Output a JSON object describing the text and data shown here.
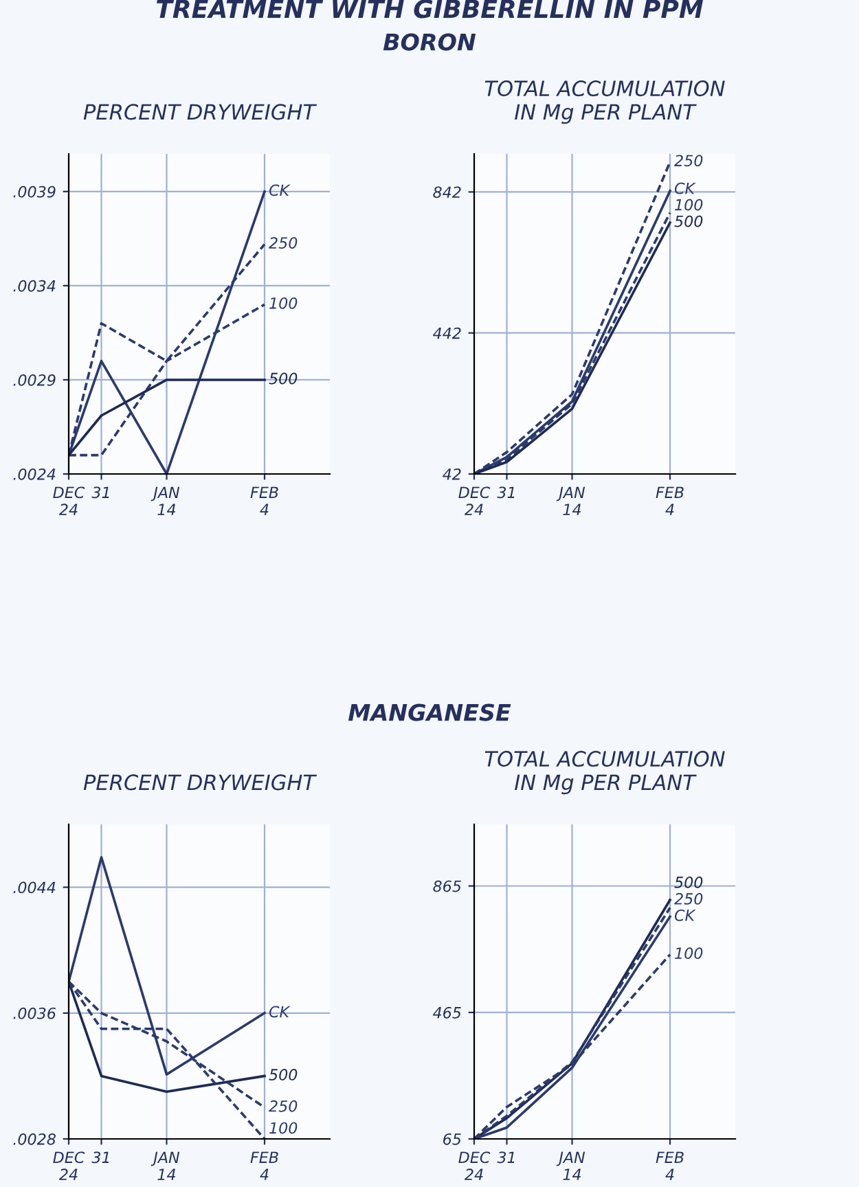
{
  "chart_data": [
    {
      "type": "line",
      "title": "PERCENT DRYWEIGHT",
      "annotations": [
        "TREATMENT WITH GIBBERELLIN IN PPM",
        "BORON"
      ],
      "categories": [
        "DEC\n24",
        "31",
        null,
        "JAN\n14",
        null,
        null,
        "FEB\n4",
        null,
        null
      ],
      "ylim": [
        0.0024,
        0.0041
      ],
      "yticks": [
        {
          "value": 0.0024,
          "label": ".0024"
        },
        {
          "value": 0.0029,
          "label": ".0029"
        },
        {
          "value": 0.0034,
          "label": ".0034"
        },
        {
          "value": 0.0039,
          "label": ".0039"
        }
      ],
      "grid": true,
      "marker": "none",
      "series": [
        {
          "name": "CK",
          "color": "#2b3a6e",
          "line_style": "solid",
          "values": [
            0.0025,
            0.003,
            null,
            0.0024,
            null,
            null,
            0.0039,
            null,
            null
          ]
        },
        {
          "name": "250",
          "color": "#2b3a6e",
          "line_style": "dashed",
          "values": [
            0.0025,
            0.0032,
            null,
            0.003,
            null,
            null,
            0.00362,
            null,
            null
          ]
        },
        {
          "name": "100",
          "color": "#2b3a6e",
          "line_style": "dashed",
          "values": [
            0.0025,
            0.0025,
            null,
            0.003,
            null,
            null,
            0.0033,
            null,
            null
          ]
        },
        {
          "name": "500",
          "color": "#1e2a55",
          "line_style": "solid",
          "values": [
            0.0025,
            0.00271,
            null,
            0.0029,
            null,
            null,
            0.0029,
            null,
            null
          ]
        }
      ]
    },
    {
      "type": "line",
      "title": "TOTAL ACCUMULATION\nIN Mg PER PLANT",
      "categories": [
        "DEC\n24",
        "31",
        null,
        "JAN\n14",
        null,
        null,
        "FEB\n4",
        null,
        null
      ],
      "ylim": [
        42,
        950
      ],
      "yticks": [
        42,
        442,
        842
      ],
      "grid": true,
      "marker": "none",
      "series": [
        {
          "name": "250",
          "color": "#2b3a6e",
          "line_style": "dashed",
          "values": [
            42,
            104,
            null,
            268,
            null,
            null,
            927,
            null,
            null
          ]
        },
        {
          "name": "CK",
          "color": "#2b3a6e",
          "line_style": "solid",
          "values": [
            42,
            90,
            null,
            248,
            null,
            null,
            845,
            null,
            null
          ]
        },
        {
          "name": "100",
          "color": "#2b3a6e",
          "line_style": "dashed",
          "values": [
            42,
            83,
            null,
            241,
            null,
            null,
            783,
            null,
            null
          ]
        },
        {
          "name": "500",
          "color": "#1e2a55",
          "line_style": "solid",
          "values": [
            42,
            76,
            null,
            227,
            null,
            null,
            755,
            null,
            null
          ]
        }
      ]
    },
    {
      "type": "line",
      "title": "PERCENT DRYWEIGHT",
      "annotations": [
        "MANGANESE"
      ],
      "categories": [
        "DEC\n24",
        "31",
        null,
        "JAN\n14",
        null,
        null,
        "FEB\n4",
        null,
        null
      ],
      "ylim": [
        0.0028,
        0.0048
      ],
      "yticks": [
        {
          "value": 0.0028,
          "label": ".0028"
        },
        {
          "value": 0.0036,
          "label": ".0036"
        },
        {
          "value": 0.0044,
          "label": ".0044"
        }
      ],
      "grid": true,
      "marker": "none",
      "series": [
        {
          "name": "CK",
          "color": "#2b3a6e",
          "line_style": "solid",
          "values": [
            0.0038,
            0.00459,
            null,
            0.00321,
            null,
            null,
            0.0036,
            null,
            null
          ]
        },
        {
          "name": "500",
          "color": "#1e2a55",
          "line_style": "solid",
          "values": [
            0.0038,
            0.0032,
            null,
            0.0031,
            null,
            null,
            0.0032,
            null,
            null
          ]
        },
        {
          "name": "250",
          "color": "#2b3a6e",
          "line_style": "dashed",
          "values": [
            0.0038,
            0.0036,
            null,
            0.00342,
            null,
            null,
            0.003,
            null,
            null
          ]
        },
        {
          "name": "100",
          "color": "#2b3a6e",
          "line_style": "dashed",
          "values": [
            0.0038,
            0.0035,
            null,
            0.0035,
            null,
            null,
            0.0028,
            null,
            null
          ]
        }
      ]
    },
    {
      "type": "line",
      "title": "TOTAL ACCUMULATION\nIN Mg PER PLANT",
      "categories": [
        "DEC\n24",
        "31",
        null,
        "JAN\n14",
        null,
        null,
        "FEB\n4",
        null,
        null
      ],
      "ylim": [
        65,
        1060
      ],
      "yticks": [
        65,
        465,
        865
      ],
      "grid": true,
      "marker": "none",
      "series": [
        {
          "name": "500",
          "color": "#1e2a55",
          "line_style": "solid",
          "values": [
            65,
            131,
            null,
            304,
            null,
            null,
            821,
            null,
            null
          ]
        },
        {
          "name": "250",
          "color": "#2b3a6e",
          "line_style": "dashed",
          "values": [
            65,
            138,
            null,
            308,
            null,
            null,
            796,
            null,
            null
          ]
        },
        {
          "name": "CK",
          "color": "#2b3a6e",
          "line_style": "solid",
          "values": [
            65,
            101,
            null,
            290,
            null,
            null,
            768,
            null,
            null
          ]
        },
        {
          "name": "100",
          "color": "#2b3a6e",
          "line_style": "dashed",
          "values": [
            65,
            166,
            null,
            300,
            null,
            null,
            648,
            null,
            null
          ]
        }
      ]
    }
  ]
}
